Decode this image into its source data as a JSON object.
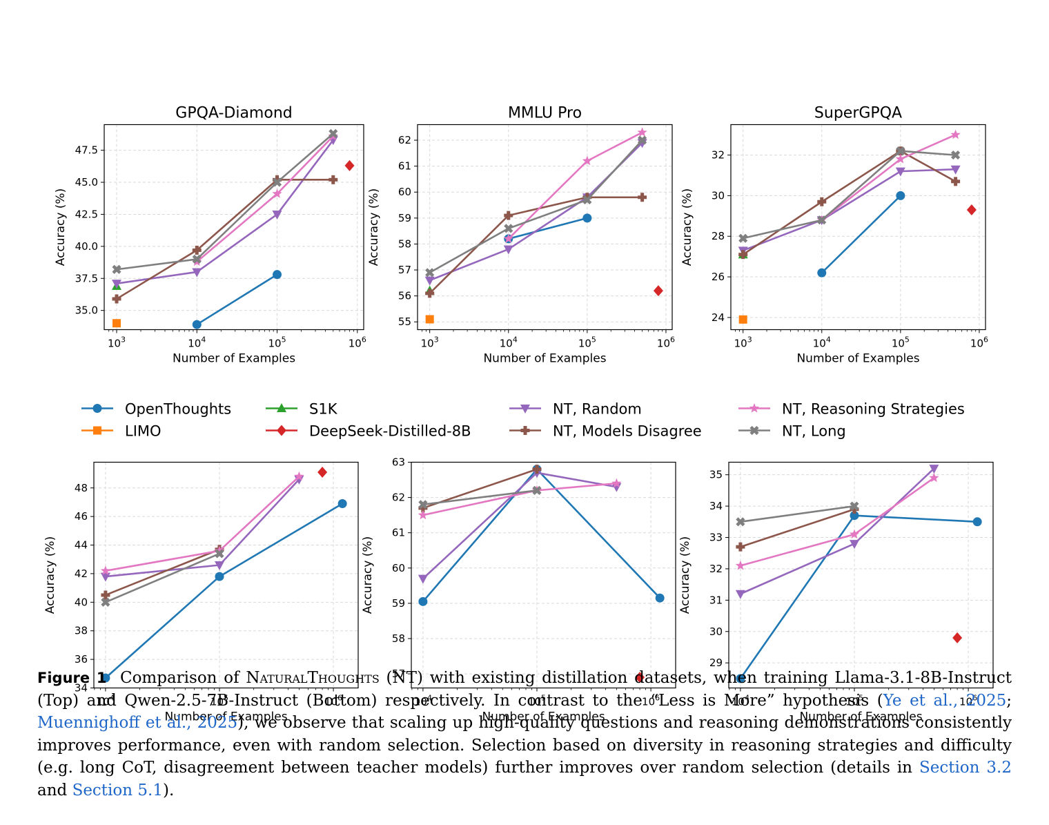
{
  "legend": [
    {
      "key": "ot",
      "label": "OpenThoughts",
      "color": "#1f77b4",
      "marker": "circle"
    },
    {
      "key": "limo",
      "label": "LIMO",
      "color": "#ff7f0e",
      "marker": "square"
    },
    {
      "key": "s1k",
      "label": "S1K",
      "color": "#2ca02c",
      "marker": "triangle-up"
    },
    {
      "key": "ds",
      "label": "DeepSeek-Distilled-8B",
      "color": "#d62728",
      "marker": "diamond"
    },
    {
      "key": "rand",
      "label": "NT, Random",
      "color": "#9467bd",
      "marker": "triangle-down"
    },
    {
      "key": "dis",
      "label": "NT, Models Disagree",
      "color": "#8c564b",
      "marker": "plus"
    },
    {
      "key": "rs",
      "label": "NT, Reasoning Strategies",
      "color": "#e377c2",
      "marker": "star"
    },
    {
      "key": "long",
      "label": "NT, Long",
      "color": "#7f7f7f",
      "marker": "x"
    }
  ],
  "chart_data": [
    {
      "type": "line",
      "title": "GPQA-Diamond",
      "xlabel": "Number of Examples",
      "ylabel": "Accuracy (%)",
      "xscale": "log",
      "xlim": [
        700,
        1200000
      ],
      "ylim": [
        33.5,
        49.5
      ],
      "xticks": [
        1000,
        10000,
        100000,
        1000000
      ],
      "xtick_labels": [
        "10^3",
        "10^4",
        "10^5",
        "10^6"
      ],
      "yticks": [
        35.0,
        37.5,
        40.0,
        42.5,
        45.0,
        47.5
      ],
      "ytick_labels": [
        "35.0",
        "37.5",
        "40.0",
        "42.5",
        "45.0",
        "47.5"
      ],
      "grid": true,
      "series": [
        {
          "name": "OpenThoughts",
          "x": [
            10000,
            100000
          ],
          "y": [
            33.9,
            37.8
          ]
        },
        {
          "name": "LIMO",
          "x": [
            1000
          ],
          "y": [
            34.0
          ]
        },
        {
          "name": "S1K",
          "x": [
            1000
          ],
          "y": [
            36.9
          ]
        },
        {
          "name": "DeepSeek-Distilled-8B",
          "x": [
            800000
          ],
          "y": [
            46.3
          ]
        },
        {
          "name": "NT, Random",
          "x": [
            1000,
            10000,
            100000,
            500000
          ],
          "y": [
            37.1,
            38.0,
            42.5,
            48.3
          ]
        },
        {
          "name": "NT, Models Disagree",
          "x": [
            1000,
            10000,
            100000,
            500000
          ],
          "y": [
            35.9,
            39.7,
            45.2,
            45.2
          ]
        },
        {
          "name": "NT, Reasoning Strategies",
          "x": [
            10000,
            100000,
            500000
          ],
          "y": [
            38.8,
            44.1,
            48.6
          ]
        },
        {
          "name": "NT, Long",
          "x": [
            1000,
            10000,
            100000,
            500000
          ],
          "y": [
            38.2,
            39.0,
            45.0,
            48.8
          ]
        }
      ]
    },
    {
      "type": "line",
      "title": "MMLU Pro",
      "xlabel": "Number of Examples",
      "ylabel": "Accuracy (%)",
      "xscale": "log",
      "xlim": [
        700,
        1200000
      ],
      "ylim": [
        54.7,
        62.6
      ],
      "xticks": [
        1000,
        10000,
        100000,
        1000000
      ],
      "xtick_labels": [
        "10^3",
        "10^4",
        "10^5",
        "10^6"
      ],
      "yticks": [
        55,
        56,
        57,
        58,
        59,
        60,
        61,
        62
      ],
      "ytick_labels": [
        "55",
        "56",
        "57",
        "58",
        "59",
        "60",
        "61",
        "62"
      ],
      "grid": true,
      "series": [
        {
          "name": "OpenThoughts",
          "x": [
            10000,
            100000
          ],
          "y": [
            58.2,
            59.0
          ]
        },
        {
          "name": "LIMO",
          "x": [
            1000
          ],
          "y": [
            55.1
          ]
        },
        {
          "name": "S1K",
          "x": [
            1000
          ],
          "y": [
            56.2
          ]
        },
        {
          "name": "DeepSeek-Distilled-8B",
          "x": [
            800000
          ],
          "y": [
            56.2
          ]
        },
        {
          "name": "NT, Random",
          "x": [
            1000,
            10000,
            100000,
            500000
          ],
          "y": [
            56.6,
            57.8,
            59.8,
            61.9
          ]
        },
        {
          "name": "NT, Models Disagree",
          "x": [
            1000,
            10000,
            100000,
            500000
          ],
          "y": [
            56.1,
            59.1,
            59.8,
            59.8
          ]
        },
        {
          "name": "NT, Reasoning Strategies",
          "x": [
            10000,
            100000,
            500000
          ],
          "y": [
            58.2,
            61.2,
            62.3
          ]
        },
        {
          "name": "NT, Long",
          "x": [
            1000,
            10000,
            100000,
            500000
          ],
          "y": [
            56.9,
            58.6,
            59.7,
            62.0
          ]
        }
      ]
    },
    {
      "type": "line",
      "title": "SuperGPQA",
      "xlabel": "Number of Examples",
      "ylabel": "Accuracy (%)",
      "xscale": "log",
      "xlim": [
        700,
        1200000
      ],
      "ylim": [
        23.4,
        33.5
      ],
      "xticks": [
        1000,
        10000,
        100000,
        1000000
      ],
      "xtick_labels": [
        "10^3",
        "10^4",
        "10^5",
        "10^6"
      ],
      "yticks": [
        24,
        26,
        28,
        30,
        32
      ],
      "ytick_labels": [
        "24",
        "26",
        "28",
        "30",
        "32"
      ],
      "grid": true,
      "series": [
        {
          "name": "OpenThoughts",
          "x": [
            10000,
            100000
          ],
          "y": [
            26.2,
            30.0
          ]
        },
        {
          "name": "LIMO",
          "x": [
            1000
          ],
          "y": [
            23.9
          ]
        },
        {
          "name": "S1K",
          "x": [
            1000
          ],
          "y": [
            27.1
          ]
        },
        {
          "name": "DeepSeek-Distilled-8B",
          "x": [
            800000
          ],
          "y": [
            29.3
          ]
        },
        {
          "name": "NT, Random",
          "x": [
            1000,
            10000,
            100000,
            500000
          ],
          "y": [
            27.3,
            28.8,
            31.2,
            31.3
          ]
        },
        {
          "name": "NT, Models Disagree",
          "x": [
            1000,
            10000,
            100000,
            500000
          ],
          "y": [
            27.1,
            29.7,
            32.2,
            30.7
          ]
        },
        {
          "name": "NT, Reasoning Strategies",
          "x": [
            10000,
            100000,
            500000
          ],
          "y": [
            28.8,
            31.8,
            33.0
          ]
        },
        {
          "name": "NT, Long",
          "x": [
            1000,
            10000,
            100000,
            500000
          ],
          "y": [
            27.9,
            28.8,
            32.2,
            32.0
          ]
        }
      ]
    },
    {
      "type": "line",
      "title": "",
      "xlabel": "Number of Examples",
      "ylabel": "Accuracy (%)",
      "xscale": "log",
      "xlim": [
        7900,
        1650000
      ],
      "ylim": [
        34.0,
        49.8
      ],
      "xticks": [
        10000,
        100000,
        1000000
      ],
      "xtick_labels": [
        "10^4",
        "10^5",
        "10^6"
      ],
      "yticks": [
        34,
        36,
        38,
        40,
        42,
        44,
        46,
        48
      ],
      "ytick_labels": [
        "34",
        "36",
        "38",
        "40",
        "42",
        "44",
        "46",
        "48"
      ],
      "grid": true,
      "series": [
        {
          "name": "OpenThoughts",
          "x": [
            10000,
            100000,
            1200000
          ],
          "y": [
            34.7,
            41.8,
            46.9
          ]
        },
        {
          "name": "DeepSeek-Distilled-8B",
          "x": [
            800000
          ],
          "y": [
            49.1
          ]
        },
        {
          "name": "NT, Random",
          "x": [
            10000,
            100000,
            500000
          ],
          "y": [
            41.8,
            42.6,
            48.6
          ]
        },
        {
          "name": "NT, Models Disagree",
          "x": [
            10000,
            100000
          ],
          "y": [
            40.5,
            43.7
          ]
        },
        {
          "name": "NT, Reasoning Strategies",
          "x": [
            10000,
            100000,
            500000
          ],
          "y": [
            42.2,
            43.6,
            48.8
          ]
        },
        {
          "name": "NT, Long",
          "x": [
            10000,
            100000
          ],
          "y": [
            40.0,
            43.4
          ]
        }
      ]
    },
    {
      "type": "line",
      "title": "",
      "xlabel": "Number of Examples",
      "ylabel": "Accuracy (%)",
      "xscale": "log",
      "xlim": [
        7900,
        1650000
      ],
      "ylim": [
        56.6,
        63.0
      ],
      "xticks": [
        10000,
        100000,
        1000000
      ],
      "xtick_labels": [
        "10^4",
        "10^5",
        "10^6"
      ],
      "yticks": [
        57,
        58,
        59,
        60,
        61,
        62,
        63
      ],
      "ytick_labels": [
        "57",
        "58",
        "59",
        "60",
        "61",
        "62",
        "63"
      ],
      "grid": true,
      "series": [
        {
          "name": "OpenThoughts",
          "x": [
            10000,
            100000,
            1200000
          ],
          "y": [
            59.05,
            62.8,
            59.15
          ]
        },
        {
          "name": "DeepSeek-Distilled-8B",
          "x": [
            800000
          ],
          "y": [
            56.9
          ]
        },
        {
          "name": "NT, Random",
          "x": [
            10000,
            100000,
            500000
          ],
          "y": [
            59.7,
            62.7,
            62.3
          ]
        },
        {
          "name": "NT, Models Disagree",
          "x": [
            10000,
            100000
          ],
          "y": [
            61.7,
            62.8
          ]
        },
        {
          "name": "NT, Reasoning Strategies",
          "x": [
            10000,
            100000,
            500000
          ],
          "y": [
            61.5,
            62.2,
            62.4
          ]
        },
        {
          "name": "NT, Long",
          "x": [
            10000,
            100000
          ],
          "y": [
            61.8,
            62.2
          ]
        }
      ]
    },
    {
      "type": "line",
      "title": "",
      "xlabel": "Number of Examples",
      "ylabel": "Accuracy (%)",
      "xscale": "log",
      "xlim": [
        7900,
        1650000
      ],
      "ylim": [
        28.2,
        35.4
      ],
      "xticks": [
        10000,
        100000,
        1000000
      ],
      "xtick_labels": [
        "10^4",
        "10^5",
        "10^6"
      ],
      "yticks": [
        29,
        30,
        31,
        32,
        33,
        34,
        35
      ],
      "ytick_labels": [
        "29",
        "30",
        "31",
        "32",
        "33",
        "34",
        "35"
      ],
      "grid": true,
      "series": [
        {
          "name": "OpenThoughts",
          "x": [
            10000,
            100000,
            1200000
          ],
          "y": [
            28.5,
            33.7,
            33.5
          ]
        },
        {
          "name": "DeepSeek-Distilled-8B",
          "x": [
            800000
          ],
          "y": [
            29.8
          ]
        },
        {
          "name": "NT, Random",
          "x": [
            10000,
            100000,
            500000
          ],
          "y": [
            31.2,
            32.8,
            35.2
          ]
        },
        {
          "name": "NT, Models Disagree",
          "x": [
            10000,
            100000
          ],
          "y": [
            32.7,
            33.9
          ]
        },
        {
          "name": "NT, Reasoning Strategies",
          "x": [
            10000,
            100000,
            500000
          ],
          "y": [
            32.1,
            33.1,
            34.9
          ]
        },
        {
          "name": "NT, Long",
          "x": [
            10000,
            100000
          ],
          "y": [
            33.5,
            34.0
          ]
        }
      ]
    }
  ],
  "caption": {
    "label": "Figure 1",
    "t1": "Comparison of ",
    "name": "NaturalThoughts",
    "t2": " (NT) with existing distillation datasets, when training Llama-3.1-8B-Instruct (Top) and Qwen-2.5-7B-Instruct (Bottom) respectively. In contrast to the “Less is More” hypothesis (",
    "ref1": "Ye et al., 2025",
    "sep": "; ",
    "ref2": "Muennighoff et al., 2025",
    "t3": "), we observe that scaling up high-quality questions and reasoning demonstrations consistently improves performance, even with random selection. Selection based on diversity in reasoning strategies and difficulty (e.g. long CoT, disagreement between teacher models) further improves over random selection (details in ",
    "ref3": "Section 3.2",
    "t4": " and ",
    "ref4": "Section 5.1",
    "t5": ")."
  }
}
